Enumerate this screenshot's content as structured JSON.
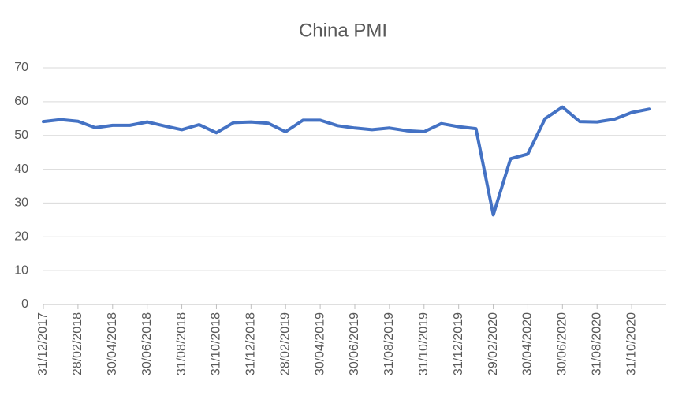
{
  "chart_data": {
    "type": "line",
    "title": "China PMI",
    "categories": [
      "31/12/2017",
      null,
      "28/02/2018",
      null,
      "30/04/2018",
      null,
      "30/06/2018",
      null,
      "31/08/2018",
      null,
      "31/10/2018",
      null,
      "31/12/2018",
      null,
      "28/02/2019",
      null,
      "30/04/2019",
      null,
      "30/06/2019",
      null,
      "31/08/2019",
      null,
      "31/10/2019",
      null,
      "31/12/2019",
      null,
      "29/02/2020",
      null,
      "30/04/2020",
      null,
      "30/06/2020",
      null,
      "31/08/2020",
      null,
      "31/10/2020",
      null
    ],
    "values": [
      54.1,
      54.7,
      54.2,
      52.3,
      53.0,
      53.0,
      54.0,
      52.8,
      51.7,
      53.2,
      50.8,
      53.8,
      54.0,
      53.6,
      51.1,
      54.5,
      54.5,
      52.9,
      52.2,
      51.7,
      52.2,
      51.4,
      51.1,
      53.5,
      52.6,
      52.0,
      26.5,
      43.1,
      44.5,
      55.0,
      58.4,
      54.1,
      54.0,
      54.8,
      56.8,
      57.8
    ],
    "color": "#4472c4",
    "ylim": [
      0,
      70
    ],
    "yticks": [
      0,
      10,
      20,
      30,
      40,
      50,
      60,
      70
    ],
    "grid": true
  }
}
